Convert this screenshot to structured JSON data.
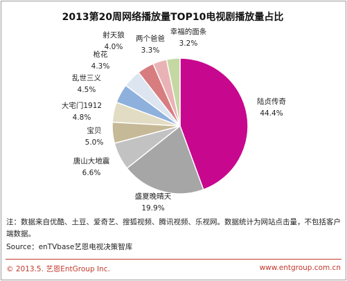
{
  "footer": {
    "note": "注：数据来自优酷、土豆、爱奇艺、搜狐视频、腾讯视频、乐视网。数据统计为网站点击量，不包括客户端数据。",
    "source": "Source：enTVbase艺恩电视决策智库",
    "copyright": "© 2013.5. 艺恩EntGroup Inc.",
    "website": "www.entgroup.com.cn"
  },
  "chart_data": {
    "type": "pie",
    "title": "2013第20周网络播放量TOP10电视剧播放量占比",
    "unit": "%",
    "slices": [
      {
        "label": "陆贞传奇",
        "value": 44.4,
        "value_label": "44.4%",
        "color": "#c8078f"
      },
      {
        "label": "盛夏晚晴天",
        "value": 19.9,
        "value_label": "19.9%",
        "color": "#a6a6a6"
      },
      {
        "label": "唐山大地震",
        "value": 6.6,
        "value_label": "6.6%",
        "color": "#c2c2c2"
      },
      {
        "label": "宝贝",
        "value": 5.0,
        "value_label": "5.0%",
        "color": "#c6b997"
      },
      {
        "label": "大宅门1912",
        "value": 4.8,
        "value_label": "4.8%",
        "color": "#e3dcc4"
      },
      {
        "label": "乱世三义",
        "value": 4.5,
        "value_label": "4.5%",
        "color": "#8eb0dc"
      },
      {
        "label": "枪花",
        "value": 4.3,
        "value_label": "4.3%",
        "color": "#dde5f1"
      },
      {
        "label": "射天狼",
        "value": 4.0,
        "value_label": "4.0%",
        "color": "#d77d80"
      },
      {
        "label": "两个爸爸",
        "value": 3.3,
        "value_label": "3.3%",
        "color": "#e9b3b5"
      },
      {
        "label": "幸福的面条",
        "value": 3.2,
        "value_label": "3.2%",
        "color": "#c5d8a4"
      }
    ]
  }
}
